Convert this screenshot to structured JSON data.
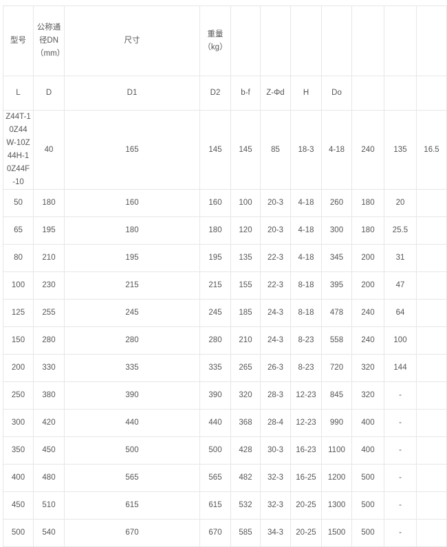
{
  "header_row": [
    "型号",
    "公称通径DN（mm）",
    "尺寸",
    "重量（kg）",
    "",
    "",
    "",
    "",
    "",
    "",
    ""
  ],
  "sub_header_row": [
    "L",
    "D",
    "D1",
    "D2",
    "b-f",
    "Z-Φd",
    "H",
    "Do",
    "",
    "",
    ""
  ],
  "rows": [
    [
      "Z44T-10Z44W-10Z44H-10Z44F-10",
      "40",
      "165",
      "145",
      "145",
      "85",
      "18-3",
      "4-18",
      "240",
      "135",
      "16.5"
    ],
    [
      "50",
      "180",
      "160",
      "160",
      "100",
      "20-3",
      "4-18",
      "260",
      "180",
      "20",
      ""
    ],
    [
      "65",
      "195",
      "180",
      "180",
      "120",
      "20-3",
      "4-18",
      "300",
      "180",
      "25.5",
      ""
    ],
    [
      "80",
      "210",
      "195",
      "195",
      "135",
      "22-3",
      "4-18",
      "345",
      "200",
      "31",
      ""
    ],
    [
      "100",
      "230",
      "215",
      "215",
      "155",
      "22-3",
      "8-18",
      "395",
      "200",
      "47",
      ""
    ],
    [
      "125",
      "255",
      "245",
      "245",
      "185",
      "24-3",
      "8-18",
      "478",
      "240",
      "64",
      ""
    ],
    [
      "150",
      "280",
      "280",
      "280",
      "210",
      "24-3",
      "8-23",
      "558",
      "240",
      "100",
      ""
    ],
    [
      "200",
      "330",
      "335",
      "335",
      "265",
      "26-3",
      "8-23",
      "720",
      "320",
      "144",
      ""
    ],
    [
      "250",
      "380",
      "390",
      "390",
      "320",
      "28-3",
      "12-23",
      "845",
      "320",
      "-",
      ""
    ],
    [
      "300",
      "420",
      "440",
      "440",
      "368",
      "28-4",
      "12-23",
      "990",
      "400",
      "-",
      ""
    ],
    [
      "350",
      "450",
      "500",
      "500",
      "428",
      "30-3",
      "16-23",
      "1100",
      "400",
      "-",
      ""
    ],
    [
      "400",
      "480",
      "565",
      "565",
      "482",
      "32-3",
      "16-25",
      "1200",
      "500",
      "-",
      ""
    ],
    [
      "450",
      "510",
      "615",
      "615",
      "532",
      "32-3",
      "20-25",
      "1300",
      "500",
      "-",
      ""
    ],
    [
      "500",
      "540",
      "670",
      "670",
      "585",
      "34-3",
      "20-25",
      "1500",
      "500",
      "-",
      ""
    ]
  ]
}
